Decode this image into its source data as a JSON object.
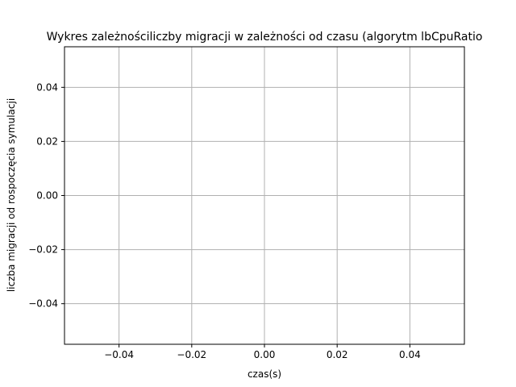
{
  "chart_data": {
    "type": "line",
    "title": "Wykres zależnościliczby migracji w zależności od czasu (algorytm lbCpuRatio",
    "xlabel": "czas(s)",
    "ylabel": "liczba migracji od rospoczęcia symulacji",
    "xlim": [
      -0.055,
      0.055
    ],
    "ylim": [
      -0.055,
      0.055
    ],
    "x_ticks": [
      -0.04,
      -0.02,
      0.0,
      0.02,
      0.04
    ],
    "x_tick_labels": [
      "−0.04",
      "−0.02",
      "0.00",
      "0.02",
      "0.04"
    ],
    "y_ticks": [
      -0.04,
      -0.02,
      0.0,
      0.02,
      0.04
    ],
    "y_tick_labels": [
      "−0.04",
      "−0.02",
      "0.00",
      "0.02",
      "0.04"
    ],
    "grid": true,
    "series": [
      {
        "x": [],
        "y": []
      }
    ]
  },
  "colors": {
    "grid": "#b0b0b0",
    "axes": "#000000",
    "background": "#ffffff"
  }
}
